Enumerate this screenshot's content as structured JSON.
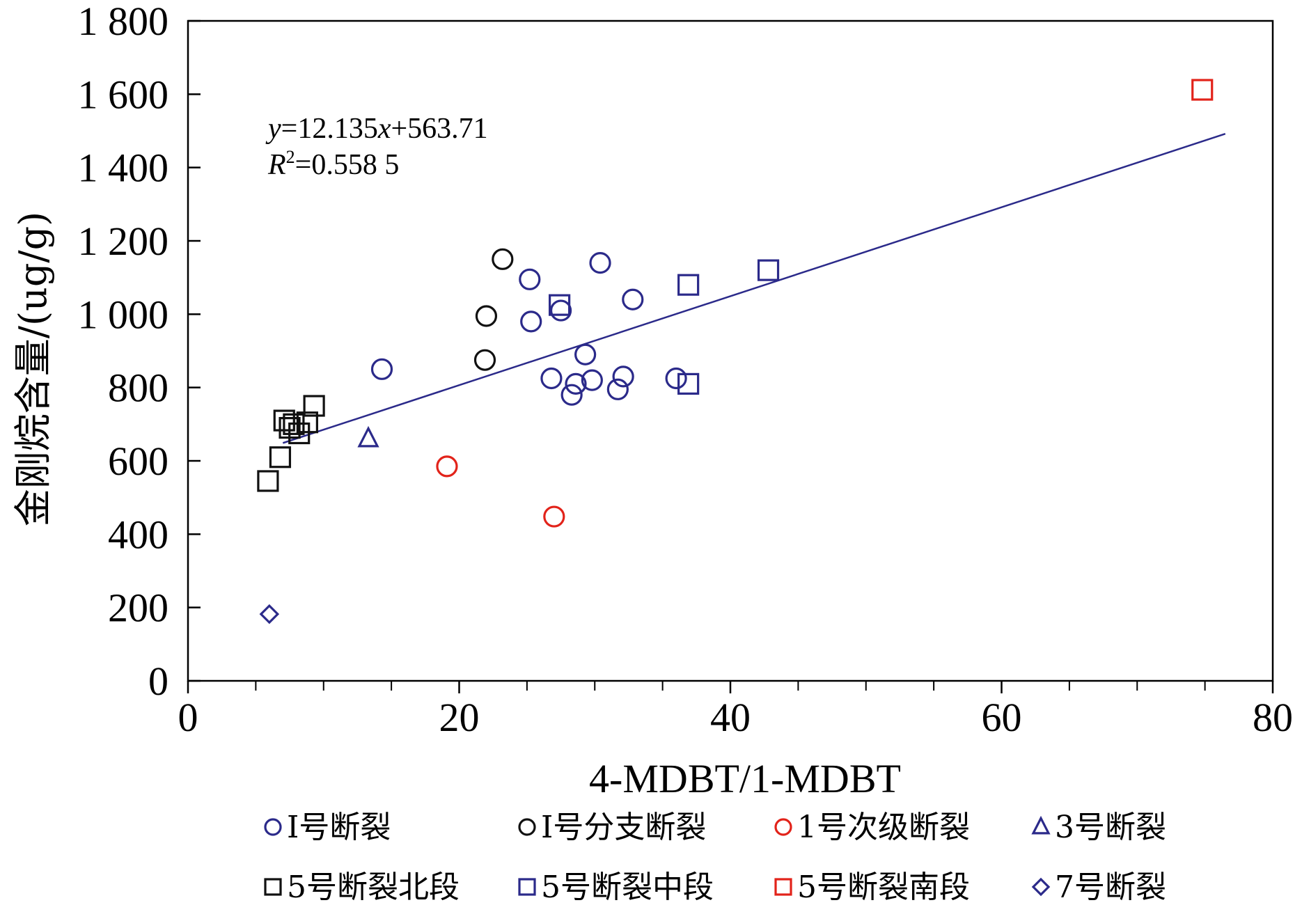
{
  "chart_data": {
    "type": "scatter",
    "xlabel": "4-MDBT/1-MDBT",
    "ylabel": "金刚烷含量/(ug/g)",
    "xlim": [
      0,
      80
    ],
    "ylim": [
      0,
      1800
    ],
    "x_ticks": [
      0,
      20,
      40,
      60,
      80
    ],
    "x_tick_labels": [
      "0",
      "20",
      "40",
      "60",
      "80"
    ],
    "x_minor_step": 5,
    "y_ticks": [
      0,
      200,
      400,
      600,
      800,
      1000,
      1200,
      1400,
      1600,
      1800
    ],
    "y_tick_labels": [
      "0",
      "200",
      "400",
      "600",
      "800",
      "1 000",
      "1 200",
      "1 400",
      "1 600",
      "1 800"
    ],
    "grid": false,
    "legend_position": "bottom",
    "trendline": {
      "slope": 12.135,
      "intercept": 563.71,
      "x_range": [
        7,
        76.5
      ],
      "color": "#2b2a8a",
      "equation_label": {
        "y": "y",
        "x": "x",
        "rest_a": "=12.135",
        "rest_b": "+563.71"
      },
      "r2_label": {
        "R": "R",
        "sup": "2",
        "rest": "=0.558 5"
      }
    },
    "series": [
      {
        "name": "I号断裂",
        "marker": "circle",
        "color": "#2b2a8a",
        "points": [
          [
            14.3,
            850
          ],
          [
            25.2,
            1095
          ],
          [
            25.3,
            980
          ],
          [
            27.5,
            1010
          ],
          [
            26.8,
            825
          ],
          [
            28.6,
            810
          ],
          [
            28.3,
            780
          ],
          [
            29.3,
            890
          ],
          [
            29.8,
            820
          ],
          [
            30.4,
            1140
          ],
          [
            31.7,
            795
          ],
          [
            32.1,
            830
          ],
          [
            32.8,
            1040
          ],
          [
            36.0,
            825
          ]
        ]
      },
      {
        "name": "I号分支断裂",
        "marker": "circle",
        "color": "#111111",
        "points": [
          [
            23.2,
            1150
          ],
          [
            22.0,
            995
          ],
          [
            21.9,
            875
          ]
        ]
      },
      {
        "name": "1号次级断裂",
        "marker": "circle",
        "color": "#e2231a",
        "points": [
          [
            19.1,
            585
          ],
          [
            27.0,
            448
          ]
        ]
      },
      {
        "name": "3号断裂",
        "marker": "triangle",
        "color": "#2b2a8a",
        "points": [
          [
            13.3,
            660
          ]
        ]
      },
      {
        "name": "5号断裂北段",
        "marker": "square",
        "color": "#111111",
        "points": [
          [
            5.9,
            545
          ],
          [
            6.8,
            610
          ],
          [
            7.1,
            710
          ],
          [
            7.5,
            690
          ],
          [
            7.8,
            700
          ],
          [
            8.2,
            675
          ],
          [
            8.8,
            705
          ],
          [
            9.3,
            750
          ]
        ]
      },
      {
        "name": "5号断裂中段",
        "marker": "square",
        "color": "#2b2a8a",
        "points": [
          [
            27.4,
            1025
          ],
          [
            36.9,
            1080
          ],
          [
            36.9,
            810
          ],
          [
            42.8,
            1120
          ]
        ]
      },
      {
        "name": "5号断裂南段",
        "marker": "square",
        "color": "#e2231a",
        "points": [
          [
            74.8,
            1612
          ]
        ]
      },
      {
        "name": "7号断裂",
        "marker": "diamond",
        "color": "#2b2a8a",
        "points": [
          [
            6.0,
            182
          ]
        ]
      }
    ]
  }
}
